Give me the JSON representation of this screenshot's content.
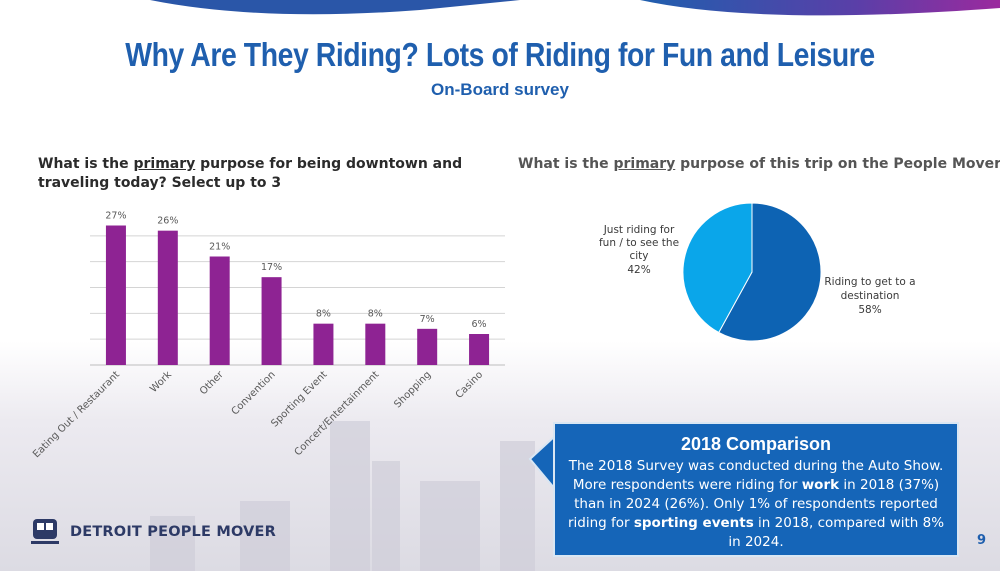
{
  "slide": {
    "title": "Why Are They Riding? Lots of Riding for Fun and Leisure",
    "subtitle": "On-Board survey",
    "page_number": "9"
  },
  "question_left": {
    "pre": "What is the ",
    "underlined": "primary",
    "post": " purpose for being downtown and traveling today? Select up to 3"
  },
  "question_right": {
    "pre": "What is the ",
    "underlined": "primary",
    "post": " purpose of this trip on the People Mover"
  },
  "callout": {
    "title": "2018 Comparison",
    "text_1": "The 2018 Survey was conducted during the Auto Show. More respondents were riding for ",
    "bold_1": "work",
    "text_2": " in 2018 (37%) than in 2024 (26%). Only 1% of respondents reported riding for ",
    "bold_2": "sporting events",
    "text_3": " in 2018, compared with 8% in 2024."
  },
  "logo": {
    "text": "DETROIT PEOPLE MOVER",
    "icon": "people-mover-train-icon"
  },
  "colors": {
    "title_blue": "#1f5fae",
    "bar_purple": "#8e2393",
    "pie_dark_blue": "#0d63b3",
    "pie_light_blue": "#0aa6ea",
    "callout_blue": "#1565b8"
  },
  "chart_data": [
    {
      "type": "bar",
      "categories": [
        "Eating Out / Restaurant",
        "Work",
        "Other",
        "Convention",
        "Sporting Event",
        "Concert/Entertainment",
        "Shopping",
        "Casino"
      ],
      "values": [
        27,
        26,
        21,
        17,
        8,
        8,
        7,
        6
      ],
      "data_labels": [
        "27%",
        "26%",
        "21%",
        "17%",
        "8%",
        "8%",
        "7%",
        "6%"
      ],
      "ylim": [
        0,
        30
      ],
      "grid": true
    },
    {
      "type": "pie",
      "categories": [
        "Riding to get to a destination",
        "Just riding for fun / to see the city"
      ],
      "values": [
        58,
        42
      ],
      "data_labels": [
        "58%",
        "42%"
      ]
    }
  ]
}
